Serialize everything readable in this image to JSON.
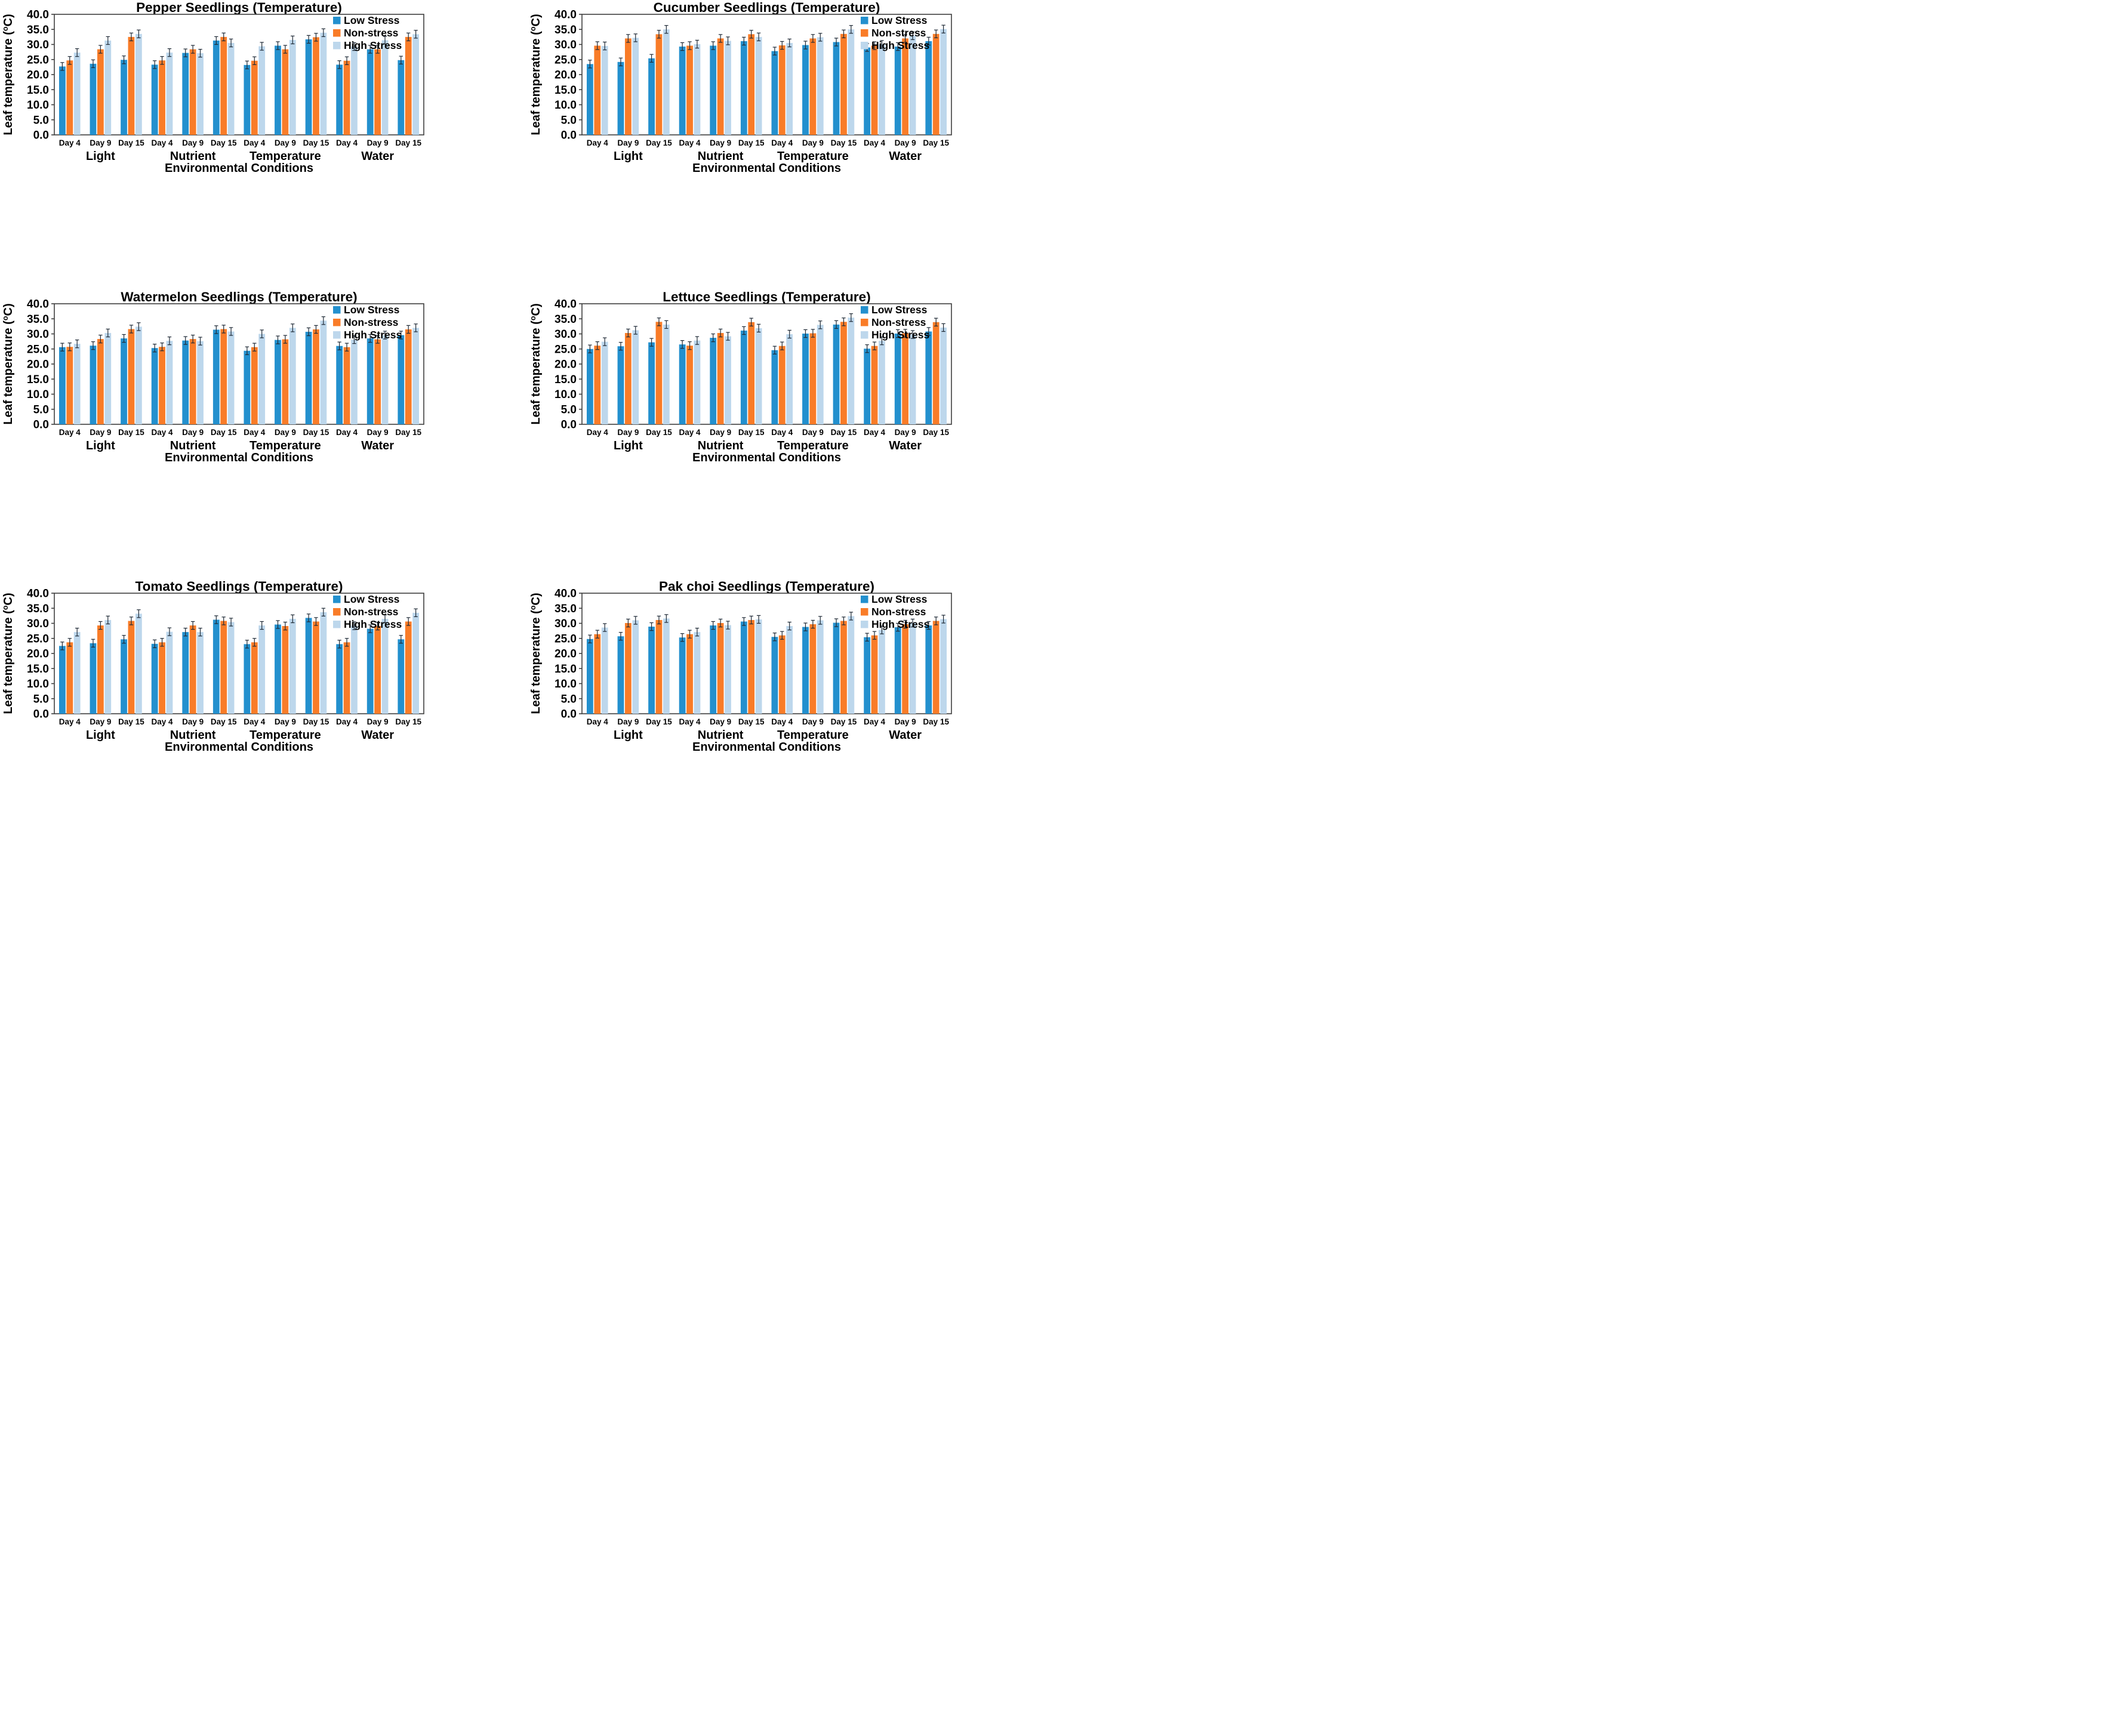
{
  "figure": {
    "description": "Six grouped bar charts of seedling leaf temperature under environmental stress conditions",
    "background": "#ffffff"
  },
  "colors": {
    "low_stress": "#2390CE",
    "non_stress": "#F97C28",
    "high_stress": "#BDD7EC",
    "axis": "#3F3F3F",
    "error_bar": "#1F2A36",
    "text": "#000000"
  },
  "legend": {
    "position": "top-right-inside",
    "items": [
      {
        "label": "Low Stress",
        "color": "#2390CE"
      },
      {
        "label": "Non-stress",
        "color": "#F97C28"
      },
      {
        "label": "High Stress",
        "color": "#BDD7EC"
      }
    ]
  },
  "chart_data": {
    "type": "bar",
    "grid": "off",
    "ylim": [
      0,
      40
    ],
    "ystep": 5,
    "ytick_decimals": 1,
    "ylabel": "Leaf temperature (°C)",
    "ylabel_parts": {
      "prefix": "Leaf temperature (",
      "sup": "o",
      "suffix": "C)"
    },
    "xlabel": "Environmental Conditions",
    "groups": [
      "Light",
      "Nutrient",
      "Temperature",
      "Water"
    ],
    "days": [
      "Day 4",
      "Day 9",
      "Day 15"
    ],
    "category_order": "12 clusters = each group x Day 4/Day 9/Day 15",
    "error_bar_halfheight": 1.3,
    "charts": [
      {
        "title": "Pepper Seedlings (Temperature)",
        "series": [
          {
            "name": "Low Stress",
            "values": [
              22.7,
              23.6,
              24.9,
              23.3,
              27.2,
              31.3,
              23.2,
              29.6,
              31.7,
              23.3,
              28.4,
              24.8
            ]
          },
          {
            "name": "Non-stress",
            "values": [
              24.7,
              28.4,
              32.5,
              24.7,
              28.4,
              32.5,
              24.6,
              28.4,
              32.4,
              24.6,
              28.4,
              32.5
            ]
          },
          {
            "name": "High Stress",
            "values": [
              27.3,
              31.3,
              33.5,
              27.3,
              27.1,
              30.5,
              29.4,
              31.5,
              33.9,
              29.3,
              31.4,
              33.4
            ]
          }
        ]
      },
      {
        "title": "Cucumber Seedlings (Temperature)",
        "series": [
          {
            "name": "Low Stress",
            "values": [
              23.5,
              24.2,
              25.4,
              29.3,
              29.6,
              31.1,
              27.8,
              29.8,
              30.8,
              29.0,
              29.3,
              31.1
            ]
          },
          {
            "name": "Non-stress",
            "values": [
              29.6,
              32.0,
              33.4,
              29.6,
              32.0,
              33.4,
              29.7,
              32.0,
              33.5,
              29.6,
              32.0,
              33.5
            ]
          },
          {
            "name": "High Stress",
            "values": [
              29.5,
              32.2,
              35.0,
              30.1,
              31.2,
              32.5,
              30.5,
              32.4,
              35.0,
              30.0,
              32.9,
              35.1
            ]
          }
        ]
      },
      {
        "title": "Watermelon Seedlings (Temperature)",
        "series": [
          {
            "name": "Low Stress",
            "values": [
              25.6,
              26.1,
              28.5,
              25.3,
              27.8,
              31.4,
              24.4,
              28.0,
              30.7,
              26.0,
              28.5,
              29.6
            ]
          },
          {
            "name": "Non-stress",
            "values": [
              25.7,
              28.3,
              31.6,
              25.7,
              28.3,
              31.6,
              25.6,
              28.2,
              31.5,
              25.6,
              28.2,
              31.5
            ]
          },
          {
            "name": "High Stress",
            "values": [
              26.7,
              30.3,
              32.4,
              27.7,
              27.6,
              30.8,
              30.0,
              32.0,
              34.4,
              28.1,
              29.6,
              32.0
            ]
          }
        ]
      },
      {
        "title": "Lettuce Seedlings (Temperature)",
        "series": [
          {
            "name": "Low Stress",
            "values": [
              25.0,
              25.9,
              27.2,
              26.5,
              28.7,
              31.1,
              24.6,
              30.1,
              33.1,
              25.1,
              30.1,
              30.8
            ]
          },
          {
            "name": "Non-stress",
            "values": [
              26.1,
              30.3,
              34.0,
              26.1,
              30.3,
              33.9,
              26.0,
              30.2,
              34.0,
              26.0,
              30.2,
              33.9
            ]
          },
          {
            "name": "High Stress",
            "values": [
              27.4,
              31.2,
              33.1,
              27.8,
              29.2,
              31.9,
              29.9,
              33.0,
              35.4,
              27.7,
              29.8,
              32.1
            ]
          }
        ]
      },
      {
        "title": "Tomato Seedlings (Temperature)",
        "series": [
          {
            "name": "Low Stress",
            "values": [
              22.5,
              23.4,
              24.7,
              23.2,
              27.1,
              31.2,
              23.1,
              29.6,
              31.8,
              23.1,
              28.2,
              24.7
            ]
          },
          {
            "name": "Non-stress",
            "values": [
              23.7,
              29.3,
              30.8,
              23.7,
              29.3,
              30.8,
              23.7,
              29.1,
              30.6,
              23.7,
              29.1,
              30.6
            ]
          },
          {
            "name": "High Stress",
            "values": [
              27.1,
              31.1,
              33.2,
              27.2,
              27.1,
              30.4,
              29.3,
              31.5,
              33.7,
              29.2,
              31.5,
              33.5
            ]
          }
        ]
      },
      {
        "title": "Pak choi  Seedlings (Temperature)",
        "series": [
          {
            "name": "Low Stress",
            "values": [
              24.8,
              25.7,
              28.9,
              25.3,
              29.3,
              30.6,
              25.5,
              28.8,
              30.2,
              25.4,
              28.7,
              29.3
            ]
          },
          {
            "name": "Non-stress",
            "values": [
              26.4,
              30.1,
              31.1,
              26.4,
              30.1,
              31.1,
              26.0,
              29.7,
              30.8,
              26.0,
              29.7,
              30.8
            ]
          },
          {
            "name": "High Stress",
            "values": [
              28.6,
              31.0,
              31.6,
              27.1,
              29.4,
              31.3,
              29.1,
              31.0,
              32.4,
              27.8,
              30.1,
              31.4
            ]
          }
        ]
      }
    ]
  }
}
